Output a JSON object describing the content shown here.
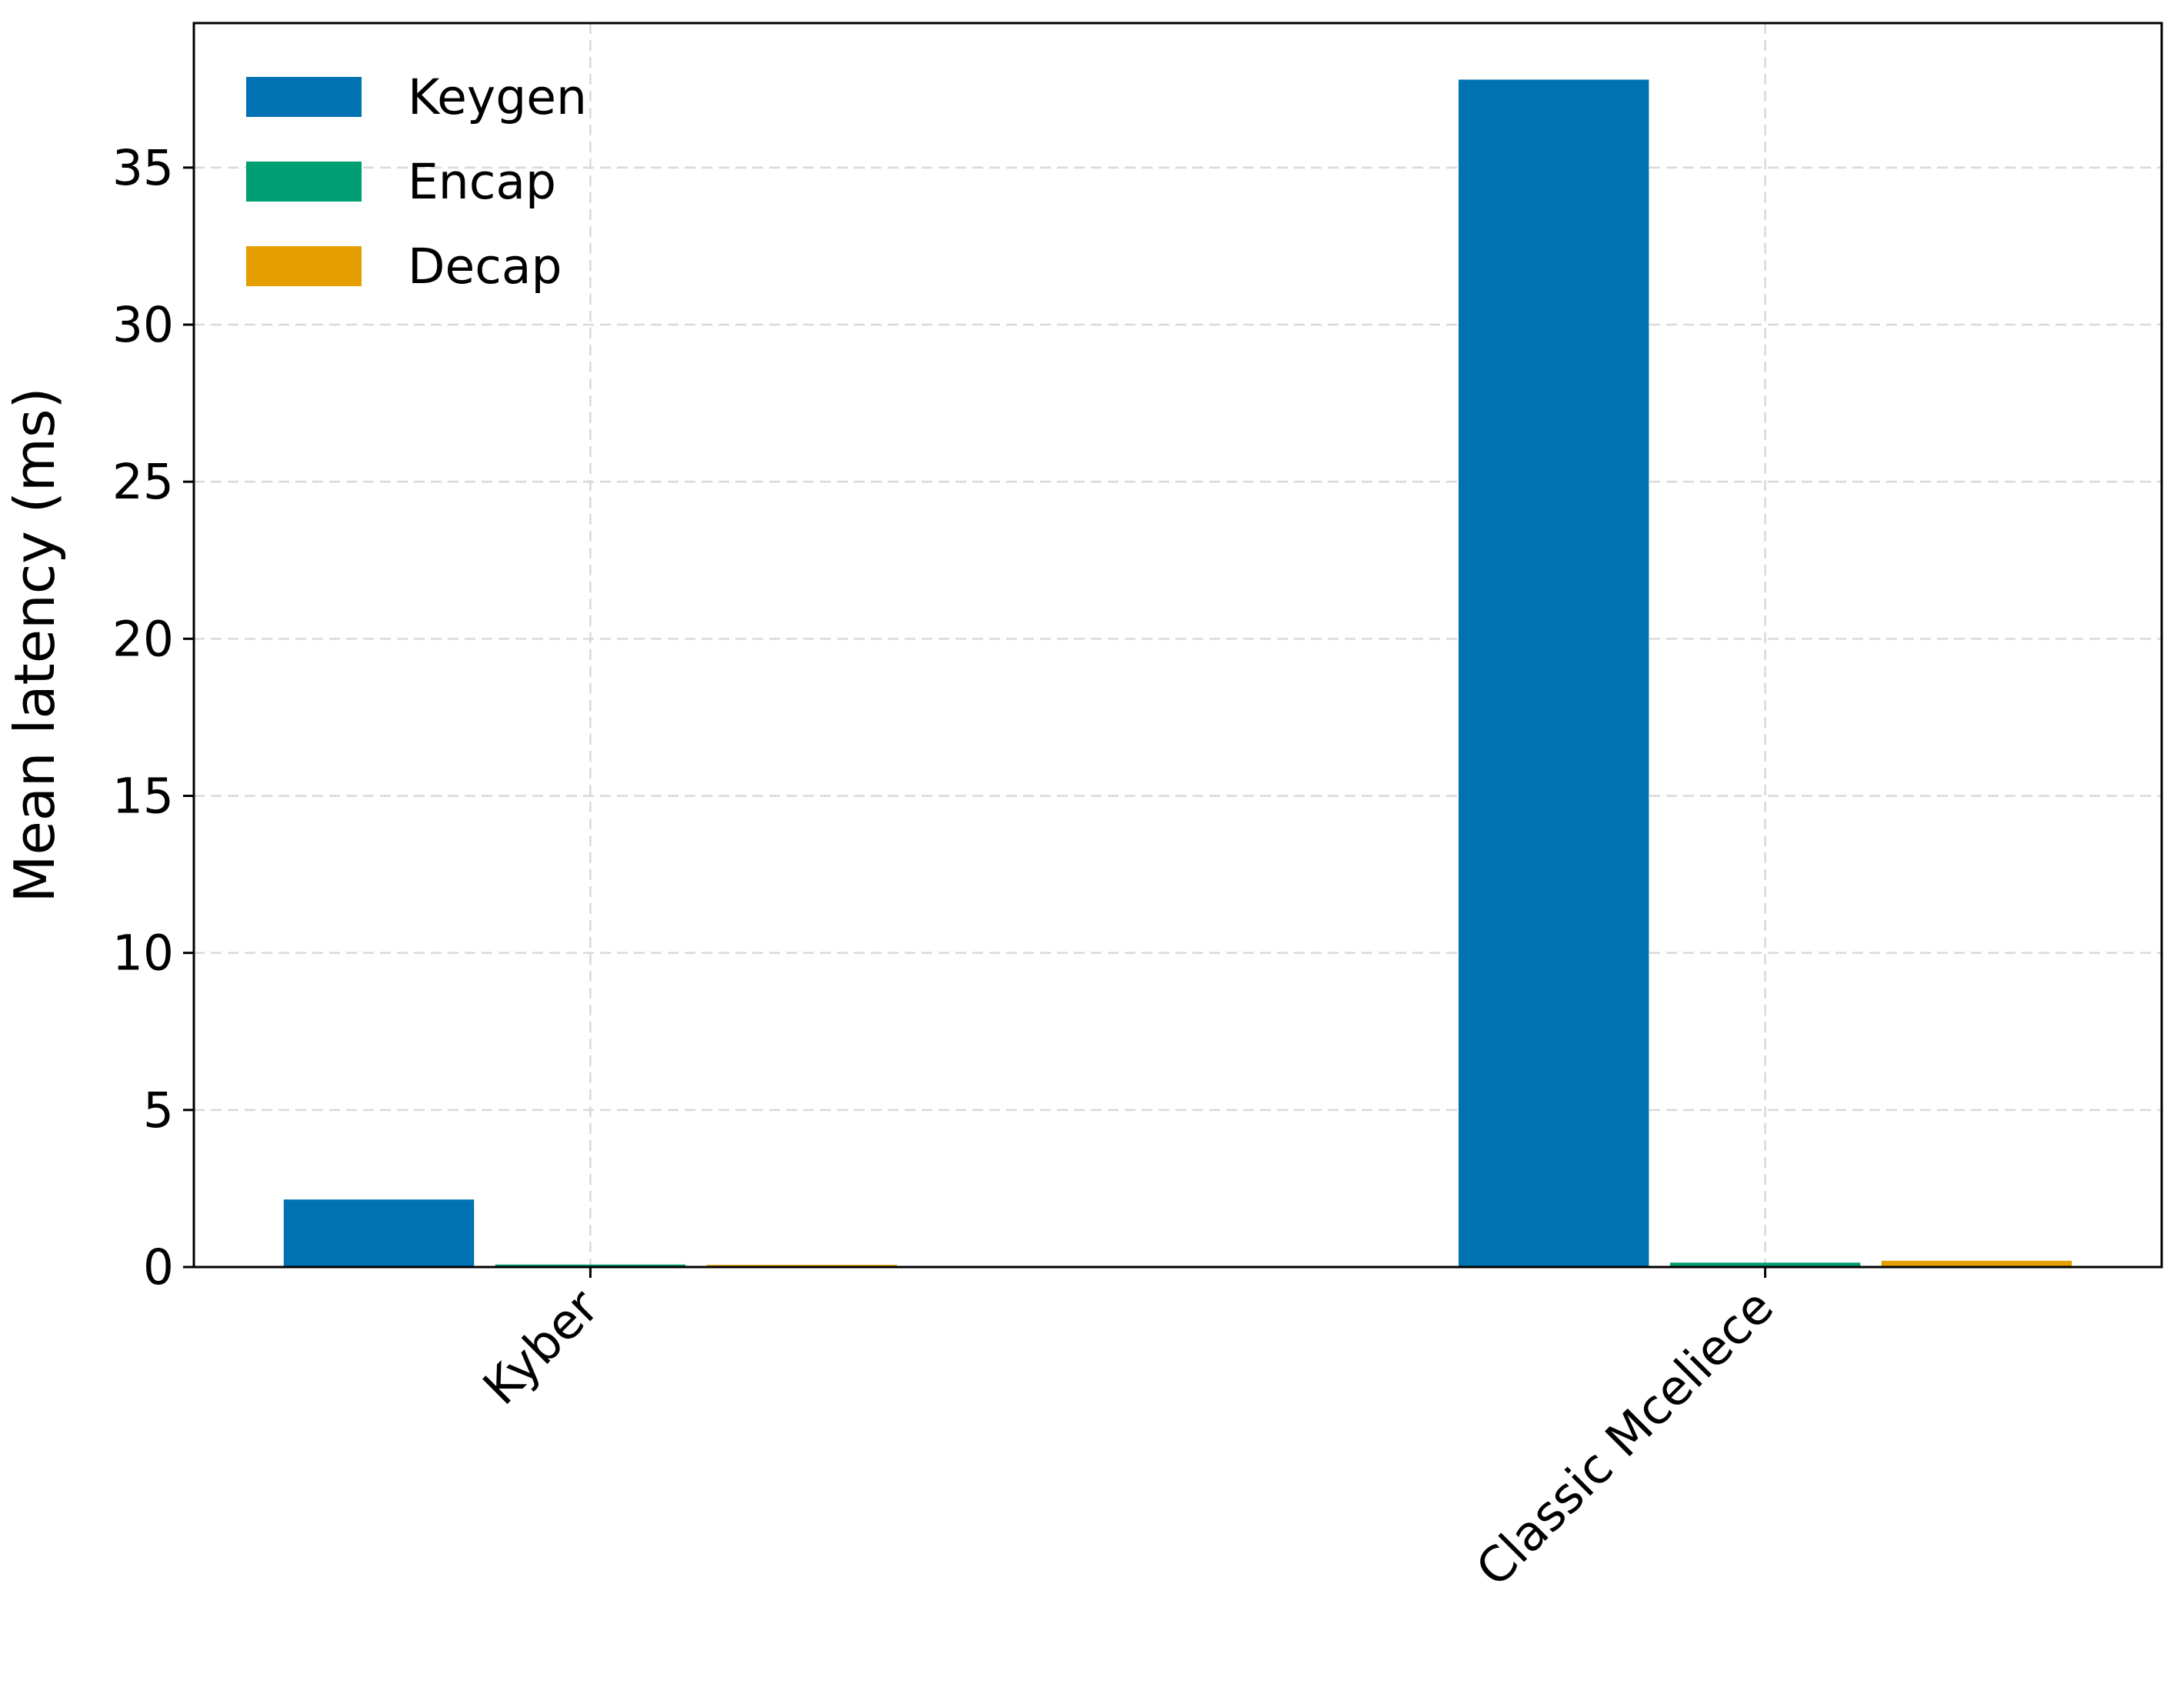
{
  "chart_data": {
    "type": "bar",
    "categories": [
      "Kyber",
      "Classic Mceliece"
    ],
    "series": [
      {
        "name": "Keygen",
        "values": [
          2.15,
          37.8
        ],
        "color": "#0072b2"
      },
      {
        "name": "Encap",
        "values": [
          0.08,
          0.14
        ],
        "color": "#009e73"
      },
      {
        "name": "Decap",
        "values": [
          0.07,
          0.2
        ],
        "color": "#e69f00"
      }
    ],
    "xlabel": "",
    "ylabel": "Mean latency (ms)",
    "ylim": [
      0,
      39.6
    ],
    "yticks": [
      0,
      5,
      10,
      15,
      20,
      25,
      30,
      35
    ],
    "grid": true,
    "legend_position": "top-left",
    "x_tick_rotation": 45
  }
}
